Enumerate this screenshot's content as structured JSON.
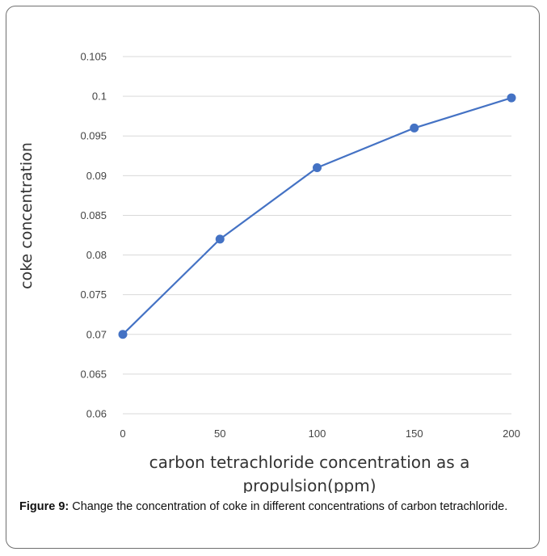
{
  "chart_data": {
    "type": "line",
    "x": [
      0,
      50,
      100,
      150,
      200
    ],
    "series": [
      {
        "values": [
          0.07,
          0.082,
          0.091,
          0.096,
          0.0998
        ]
      }
    ],
    "x_tick_labels": [
      "0",
      "50",
      "100",
      "150",
      "200"
    ],
    "y_tick_labels": [
      "0.06",
      "0.065",
      "0.07",
      "0.075",
      "0.08",
      "0.085",
      "0.09",
      "0.095",
      "0.1",
      "0.105"
    ],
    "xlabel_line1": "carbon tetrachloride concentration as a",
    "xlabel_line2": "propulsion(ppm)",
    "ylabel": "coke concentration",
    "xlim": [
      0,
      200
    ],
    "ylim": [
      0.06,
      0.105
    ],
    "grid": "horizontal",
    "line_color": "#4472c4"
  },
  "caption": {
    "label": "Figure 9:",
    "text": " Change the concentration of coke in different concentrations of carbon tetrachloride."
  }
}
